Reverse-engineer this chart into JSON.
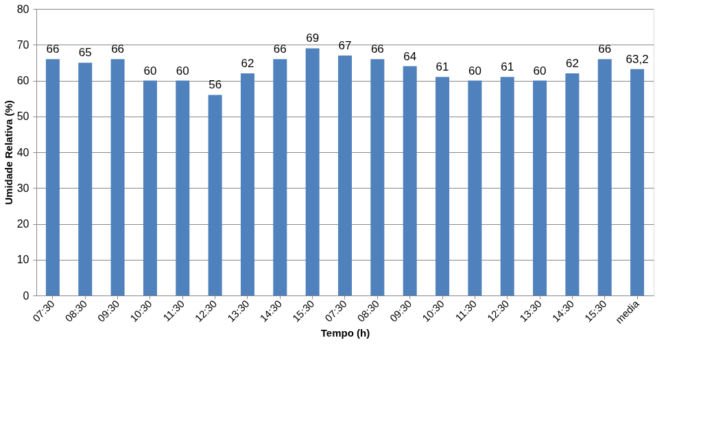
{
  "chart_data": {
    "type": "bar",
    "xlabel": "Tempo (h)",
    "ylabel": "Umidade Relativa (%)",
    "categories": [
      "07:30",
      "08:30",
      "09:30",
      "10:30",
      "11:30",
      "12:30",
      "13:30",
      "14:30",
      "15:30",
      "07:30",
      "08:30",
      "09:30",
      "10:30",
      "11:30",
      "12:30",
      "13:30",
      "14:30",
      "15:30",
      "media"
    ],
    "values": [
      66,
      65,
      66,
      60,
      60,
      56,
      62,
      66,
      69,
      67,
      66,
      64,
      61,
      60,
      61,
      60,
      62,
      66,
      63.2
    ],
    "value_labels": [
      "66",
      "65",
      "66",
      "60",
      "60",
      "56",
      "62",
      "66",
      "69",
      "67",
      "66",
      "64",
      "61",
      "60",
      "61",
      "60",
      "62",
      "66",
      "63,2"
    ],
    "color": "#4f81bd",
    "ylim": [
      0,
      80
    ],
    "yticks": [
      0,
      10,
      20,
      30,
      40,
      50,
      60,
      70,
      80
    ],
    "grid": "y"
  }
}
